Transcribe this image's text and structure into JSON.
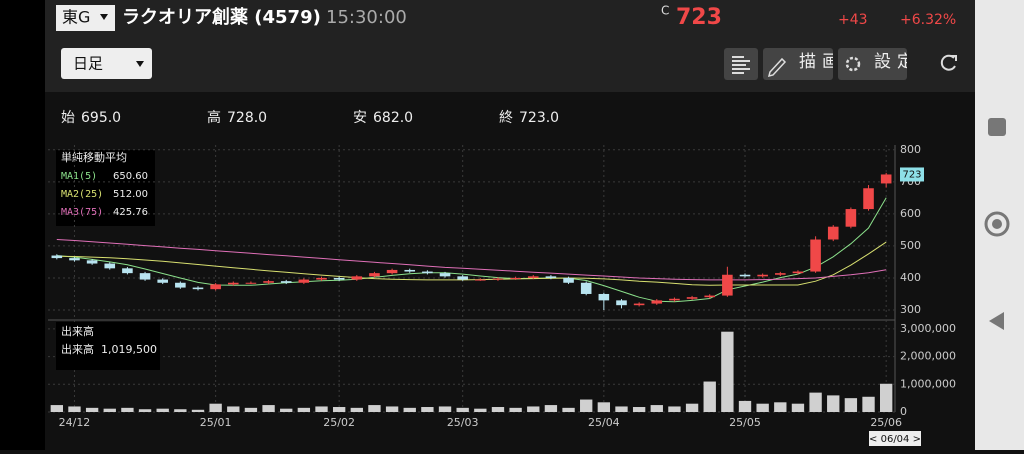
{
  "header": {
    "market": "東G",
    "name": "ラクオリア創薬 (4579)",
    "time": "15:30:00",
    "price_prefix": "C",
    "price": "723",
    "change": "+43",
    "change_pct": "+6.32%"
  },
  "toolbar": {
    "period": "日足",
    "draw": "描画",
    "settings": "設定"
  },
  "ohlc_summary": [
    {
      "label": "始",
      "value": "695.0"
    },
    {
      "label": "高",
      "value": "728.0"
    },
    {
      "label": "安",
      "value": "682.0"
    },
    {
      "label": "終",
      "value": "723.0"
    }
  ],
  "chart_data": {
    "type": "candlestick",
    "up_color": "#f04848",
    "down_color": "#b8e4f0",
    "categories": [
      null,
      "24/12",
      null,
      null,
      null,
      null,
      null,
      null,
      null,
      "25/01",
      null,
      null,
      null,
      null,
      null,
      null,
      "25/02",
      null,
      null,
      null,
      null,
      null,
      null,
      "25/03",
      null,
      null,
      null,
      null,
      null,
      null,
      null,
      "25/04",
      null,
      null,
      null,
      null,
      null,
      null,
      null,
      "25/05",
      null,
      null,
      null,
      null,
      null,
      null,
      null,
      "25/06"
    ],
    "open": [
      470,
      462,
      455,
      445,
      430,
      415,
      395,
      385,
      370,
      365,
      380,
      385,
      385,
      390,
      385,
      395,
      400,
      395,
      405,
      415,
      425,
      420,
      415,
      405,
      395,
      395,
      398,
      400,
      405,
      400,
      385,
      350,
      330,
      315,
      320,
      330,
      335,
      340,
      345,
      410,
      405,
      410,
      415,
      420,
      520,
      560,
      615,
      695
    ],
    "high": [
      474,
      466,
      459,
      449,
      434,
      419,
      399,
      389,
      374,
      384,
      389,
      389,
      394,
      394,
      399,
      404,
      404,
      409,
      419,
      429,
      429,
      424,
      419,
      409,
      399,
      402,
      404,
      409,
      409,
      404,
      389,
      354,
      334,
      324,
      334,
      339,
      344,
      349,
      435,
      414,
      414,
      419,
      424,
      530,
      565,
      620,
      690,
      728
    ],
    "low": [
      458,
      451,
      441,
      426,
      411,
      391,
      381,
      366,
      361,
      361,
      376,
      381,
      381,
      381,
      381,
      391,
      391,
      391,
      401,
      411,
      416,
      411,
      401,
      391,
      391,
      391,
      394,
      396,
      396,
      381,
      346,
      300,
      305,
      311,
      316,
      326,
      331,
      336,
      341,
      401,
      401,
      406,
      411,
      416,
      515,
      555,
      610,
      682
    ],
    "close": [
      462,
      455,
      445,
      430,
      415,
      395,
      385,
      370,
      365,
      380,
      385,
      385,
      390,
      385,
      395,
      400,
      395,
      405,
      415,
      425,
      420,
      415,
      405,
      395,
      395,
      398,
      400,
      405,
      400,
      385,
      350,
      330,
      315,
      320,
      330,
      335,
      340,
      345,
      410,
      405,
      410,
      415,
      420,
      520,
      560,
      615,
      680,
      723
    ],
    "ylim": [
      275,
      815
    ],
    "yticks": [
      300,
      400,
      500,
      600,
      700,
      800
    ],
    "ma_title": "単純移動平均",
    "ma_series": [
      {
        "name": "MA1(5)",
        "legend_value": "650.60",
        "color": "#8be08b",
        "values": [
          470,
          465,
          458,
          450,
          441,
          428,
          414,
          400,
          386,
          378,
          377,
          377,
          381,
          385,
          388,
          391,
          393,
          396,
          402,
          408,
          413,
          416,
          416,
          412,
          406,
          401,
          398,
          399,
          400,
          399,
          392,
          376,
          358,
          340,
          327,
          326,
          330,
          336,
          363,
          375,
          387,
          401,
          412,
          434,
          466,
          507,
          556,
          650.6
        ]
      },
      {
        "name": "MA2(25)",
        "legend_value": "512.00",
        "color": "#d8e070",
        "values": [
          468,
          467,
          465,
          463,
          460,
          456,
          452,
          447,
          442,
          437,
          432,
          427,
          422,
          418,
          413,
          409,
          405,
          401,
          398,
          396,
          395,
          394,
          394,
          394,
          395,
          396,
          397,
          398,
          399,
          400,
          399,
          397,
          394,
          390,
          387,
          383,
          379,
          377,
          378,
          378,
          378,
          378,
          378,
          390,
          410,
          440,
          475,
          512
        ]
      },
      {
        "name": "MA3(75)",
        "legend_value": "425.76",
        "color": "#e070b8",
        "values": [
          520,
          517,
          513,
          509,
          505,
          501,
          497,
          493,
          489,
          485,
          481,
          477,
          473,
          469,
          465,
          461,
          457,
          453,
          449,
          445,
          441,
          437,
          433,
          430,
          427,
          424,
          421,
          418,
          415,
          412,
          409,
          406,
          403,
          400,
          398,
          396,
          395,
          394,
          394,
          394,
          395,
          396,
          398,
          400,
          405,
          410,
          416,
          425.76
        ]
      }
    ],
    "volume": {
      "title": "出来高",
      "label": "出来高",
      "last_label": "1,019,500",
      "color": "#d0d0d0",
      "values": [
        250000,
        200000,
        150000,
        120000,
        150000,
        100000,
        120000,
        100000,
        80000,
        300000,
        200000,
        150000,
        250000,
        120000,
        150000,
        200000,
        180000,
        150000,
        250000,
        200000,
        150000,
        180000,
        200000,
        150000,
        120000,
        180000,
        150000,
        200000,
        250000,
        150000,
        450000,
        350000,
        200000,
        180000,
        250000,
        200000,
        300000,
        1100000,
        2900000,
        400000,
        300000,
        350000,
        300000,
        700000,
        600000,
        500000,
        550000,
        1019500
      ],
      "ylim": [
        0,
        3250000
      ],
      "yticks": [
        0,
        {
          "value": 1000000,
          "label": "1,000,000"
        },
        {
          "value": 2000000,
          "label": "2,000,000"
        },
        {
          "value": 3000000,
          "label": "3,000,000"
        }
      ]
    },
    "date_nav": "< 06/04 >"
  }
}
